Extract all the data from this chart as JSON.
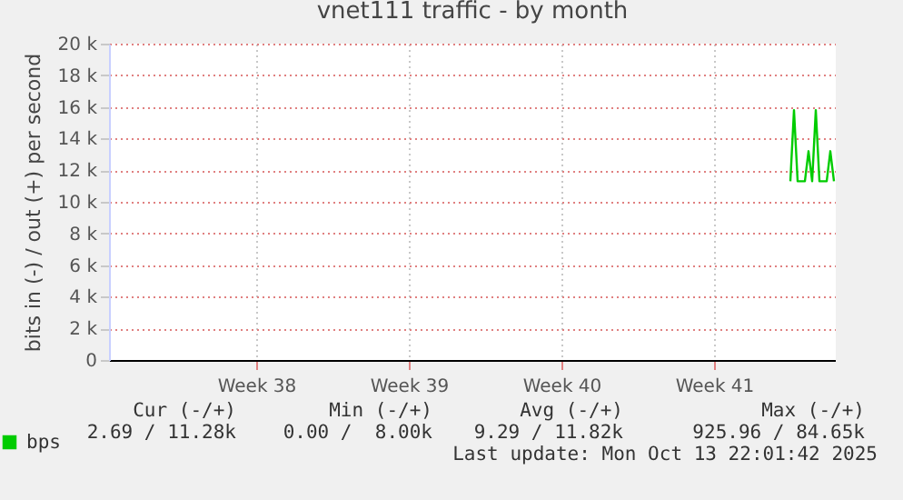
{
  "chart_data": {
    "type": "line",
    "title": "vnet111 traffic - by month",
    "ylabel": "bits in (-) / out (+) per second",
    "categories": [
      null,
      null,
      null,
      null,
      null,
      null,
      null,
      null,
      null,
      null,
      null,
      null,
      null,
      null,
      null,
      null,
      null,
      null,
      null,
      null,
      null,
      null,
      null,
      null,
      null,
      null,
      null,
      null,
      null,
      null,
      null,
      null,
      null,
      null,
      null,
      null,
      null,
      null,
      null,
      null,
      "Week 38",
      null,
      null,
      null,
      null,
      null,
      null,
      null,
      null,
      null,
      null,
      null,
      null,
      null,
      null,
      null,
      null,
      null,
      null,
      null,
      null,
      null,
      null,
      null,
      null,
      null,
      null,
      null,
      null,
      null,
      null,
      null,
      null,
      null,
      null,
      null,
      null,
      null,
      null,
      null,
      null,
      null,
      "Week 39",
      null,
      null,
      null,
      null,
      null,
      null,
      null,
      null,
      null,
      null,
      null,
      null,
      null,
      null,
      null,
      null,
      null,
      null,
      null,
      null,
      null,
      null,
      null,
      null,
      null,
      null,
      null,
      null,
      null,
      null,
      null,
      null,
      null,
      null,
      null,
      null,
      null,
      null,
      null,
      null,
      null,
      "Week 40",
      null,
      null,
      null,
      null,
      null,
      null,
      null,
      null,
      null,
      null,
      null,
      null,
      null,
      null,
      null,
      null,
      null,
      null,
      null,
      null,
      null,
      null,
      null,
      null,
      null,
      null,
      null,
      null,
      null,
      null,
      null,
      null,
      null,
      null,
      null,
      null,
      null,
      null,
      null,
      null,
      null,
      "Week 41",
      null,
      null,
      null,
      null,
      null,
      null,
      null,
      null,
      null,
      null,
      null,
      null,
      null,
      null,
      null,
      null,
      null,
      null,
      null,
      null,
      null,
      null,
      null,
      null,
      null,
      null,
      null,
      null,
      null,
      null,
      null,
      null,
      null
    ],
    "ylim": [
      0,
      20000
    ],
    "yticks": [
      {
        "value": 0,
        "label": "0"
      },
      {
        "value": 2000,
        "label": "2 k"
      },
      {
        "value": 4000,
        "label": "4 k"
      },
      {
        "value": 6000,
        "label": "6 k"
      },
      {
        "value": 8000,
        "label": "8 k"
      },
      {
        "value": 10000,
        "label": "10 k"
      },
      {
        "value": 12000,
        "label": "12 k"
      },
      {
        "value": 14000,
        "label": "14 k"
      },
      {
        "value": 16000,
        "label": "16 k"
      },
      {
        "value": 18000,
        "label": "18 k"
      },
      {
        "value": 20000,
        "label": "20 k"
      }
    ],
    "grid": true,
    "legend": "bottom left",
    "series": [
      {
        "name": "bps",
        "color": "#00cc00",
        "values": [
          null,
          null,
          null,
          null,
          null,
          null,
          null,
          null,
          null,
          null,
          null,
          null,
          null,
          null,
          null,
          null,
          null,
          null,
          null,
          null,
          null,
          null,
          null,
          null,
          null,
          null,
          null,
          null,
          null,
          null,
          null,
          null,
          null,
          null,
          null,
          null,
          null,
          null,
          null,
          null,
          null,
          null,
          null,
          null,
          null,
          null,
          null,
          null,
          null,
          null,
          null,
          null,
          null,
          null,
          null,
          null,
          null,
          null,
          null,
          null,
          null,
          null,
          null,
          null,
          null,
          null,
          null,
          null,
          null,
          null,
          null,
          null,
          null,
          null,
          null,
          null,
          null,
          null,
          null,
          null,
          null,
          null,
          null,
          null,
          null,
          null,
          null,
          null,
          null,
          null,
          null,
          null,
          null,
          null,
          null,
          null,
          null,
          null,
          null,
          null,
          null,
          null,
          null,
          null,
          null,
          null,
          null,
          null,
          null,
          null,
          null,
          null,
          null,
          null,
          null,
          null,
          null,
          null,
          null,
          null,
          null,
          null,
          null,
          null,
          null,
          null,
          null,
          null,
          null,
          null,
          null,
          null,
          null,
          null,
          null,
          null,
          null,
          null,
          null,
          null,
          null,
          null,
          null,
          null,
          null,
          null,
          null,
          null,
          null,
          null,
          null,
          null,
          null,
          null,
          null,
          null,
          null,
          null,
          null,
          null,
          null,
          null,
          null,
          null,
          null,
          null,
          null,
          null,
          null,
          null,
          null,
          null,
          null,
          null,
          null,
          null,
          null,
          null,
          null,
          null,
          null,
          null,
          null,
          null,
          null,
          null,
          null,
          11300,
          15800,
          11300,
          11300,
          11300,
          13200,
          11300,
          15800,
          11300,
          11300,
          11300,
          13200,
          11300
        ]
      }
    ],
    "annotations": [
      "Cur (-/+)",
      "Min (-/+)",
      "Avg (-/+)",
      "Max (-/+)",
      "2.69 / 11.28k",
      "0.00 /  8.00k",
      "9.29 / 11.82k",
      "925.96 / 84.65k",
      "Last update: Mon Oct 13 22:01:42 2025"
    ]
  }
}
